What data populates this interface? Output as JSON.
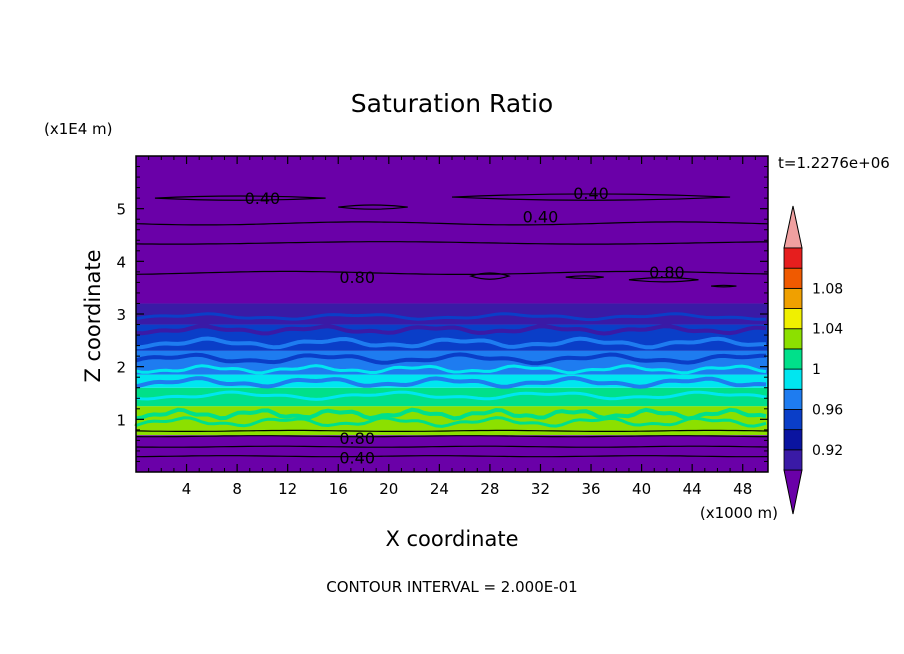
{
  "chart_data": {
    "type": "contour",
    "title": "Saturation Ratio",
    "xlabel": "X coordinate",
    "ylabel": "Z coordinate",
    "x_unit": "(x1000 m)",
    "y_unit": "(x1E4 m)",
    "time_label": "t=1.2276e+06",
    "contour_interval_text": "CONTOUR INTERVAL = 2.000E-01",
    "xlim": [
      0,
      50
    ],
    "ylim": [
      0,
      6
    ],
    "x_ticks": [
      4,
      8,
      12,
      16,
      20,
      24,
      28,
      32,
      36,
      40,
      44,
      48
    ],
    "y_ticks": [
      1,
      2,
      3,
      4,
      5
    ],
    "colorbar": {
      "tick_labels": [
        "0.92",
        "0.96",
        "1",
        "1.04",
        "1.08"
      ],
      "levels": [
        0.92,
        0.94,
        0.96,
        0.98,
        1.0,
        1.02,
        1.04,
        1.06,
        1.08,
        1.1
      ],
      "colors": [
        "#6a00a8",
        "#3a1aa6",
        "#0a14a0",
        "#0a3ec8",
        "#1e7cf0",
        "#00e6f0",
        "#00e08a",
        "#8ce000",
        "#f0f000",
        "#f0a000",
        "#f05a00",
        "#e61e1e",
        "#f0a0a0"
      ]
    },
    "bands": [
      {
        "z0": 0.0,
        "z1": 0.7,
        "color": "#6a00a8"
      },
      {
        "z0": 0.7,
        "z1": 1.25,
        "color": "#8ce000"
      },
      {
        "z0": 1.25,
        "z1": 1.6,
        "color": "#00e08a"
      },
      {
        "z0": 1.6,
        "z1": 1.85,
        "color": "#00e6f0"
      },
      {
        "z0": 1.85,
        "z1": 2.3,
        "color": "#1e7cf0"
      },
      {
        "z0": 2.3,
        "z1": 2.8,
        "color": "#0a3ec8"
      },
      {
        "z0": 2.8,
        "z1": 3.2,
        "color": "#3a1aa6"
      },
      {
        "z0": 3.2,
        "z1": 6.0,
        "color": "#6a00a8"
      }
    ],
    "contour_labels": [
      {
        "text": "0.40",
        "x": 10,
        "z": 5.2
      },
      {
        "text": "0.40",
        "x": 36,
        "z": 5.3
      },
      {
        "text": "0.40",
        "x": 32,
        "z": 4.85
      },
      {
        "text": "0.80",
        "x": 17.5,
        "z": 3.7
      },
      {
        "text": "0.80",
        "x": 42,
        "z": 3.8
      },
      {
        "text": "0.80",
        "x": 17.5,
        "z": 0.65
      },
      {
        "text": "0.40",
        "x": 17.5,
        "z": 0.28
      }
    ]
  }
}
